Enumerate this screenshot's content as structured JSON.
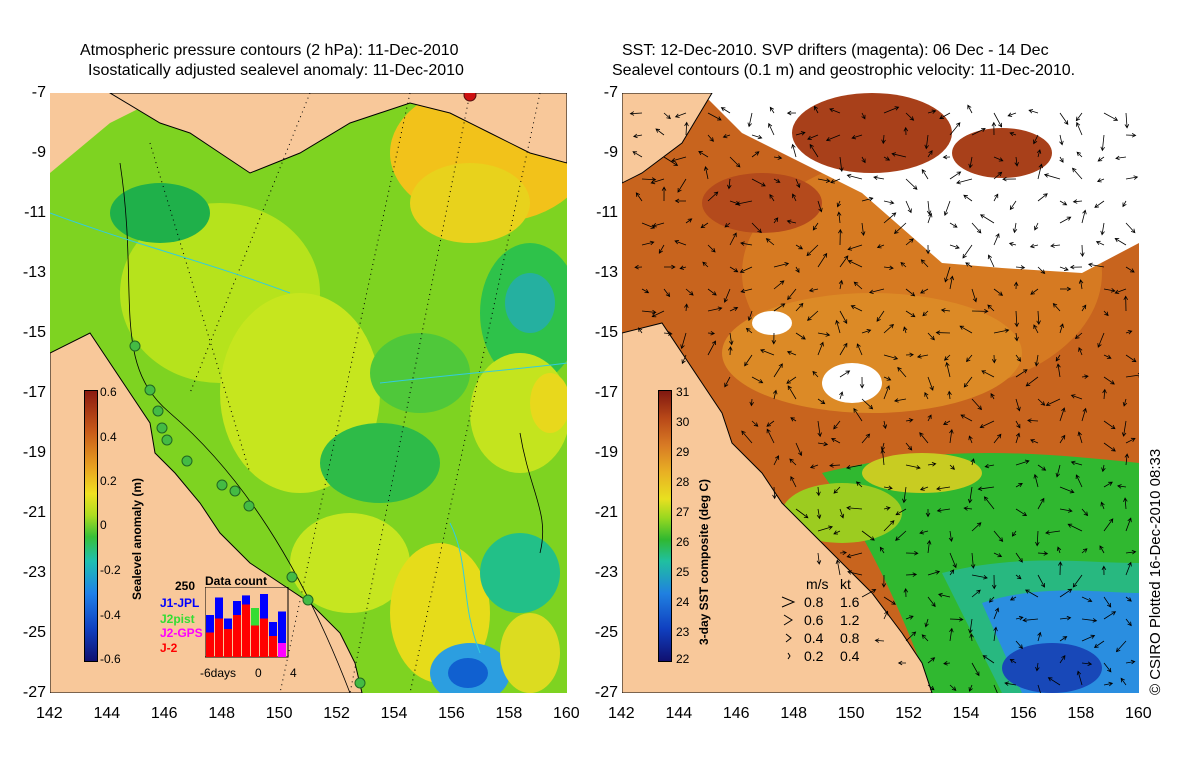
{
  "left_panel": {
    "title_line1": "Atmospheric pressure contours (2 hPa): 11-Dec-2010",
    "title_line2": "Isostatically adjusted sealevel anomaly: 11-Dec-2010",
    "colorbar": {
      "label": "Sealevel anomaly (m)",
      "ticks": [
        "0.6",
        "0.4",
        "0.2",
        "0",
        "-0.2",
        "-0.4",
        "-0.6"
      ]
    },
    "data_count": {
      "title": "Data count",
      "max_label": "250",
      "series": [
        {
          "name": "J1-JPL",
          "color": "#0000ff"
        },
        {
          "name": "J2pist",
          "color": "#33dd33"
        },
        {
          "name": "J2-GPS",
          "color": "#ff00ff"
        },
        {
          "name": "J-2",
          "color": "#ff0000"
        }
      ],
      "xaxis_labels": [
        "-6days",
        "0",
        "4"
      ],
      "bars": [
        {
          "red": 0.35,
          "blue": 0.6
        },
        {
          "red": 0.55,
          "blue": 0.85
        },
        {
          "red": 0.4,
          "blue": 0.55
        },
        {
          "red": 0.6,
          "blue": 0.8
        },
        {
          "red": 0.75,
          "blue": 0.88
        },
        {
          "red": 0.45,
          "blue": 0.55,
          "green": 0.7
        },
        {
          "red": 0.55,
          "blue": 0.9
        },
        {
          "red": 0.3,
          "blue": 0.5
        },
        {
          "red": 0.1,
          "blue": 0.65,
          "magenta": 0.2
        }
      ]
    }
  },
  "right_panel": {
    "title_line1": "SST: 12-Dec-2010. SVP drifters (magenta): 06 Dec - 14 Dec",
    "title_line2": "Sealevel contours (0.1 m) and geostrophic velocity: 11-Dec-2010.",
    "colorbar": {
      "label": "3-day SST composite (deg C)",
      "ticks": [
        "31",
        "30",
        "29",
        "28",
        "27",
        "26",
        "25",
        "24",
        "23",
        "22"
      ]
    },
    "vector_legend": {
      "header_ms": "m/s",
      "header_kt": "kt",
      "rows": [
        {
          "ms": "0.8",
          "kt": "1.6"
        },
        {
          "ms": "0.6",
          "kt": "1.2"
        },
        {
          "ms": "0.4",
          "kt": "0.8"
        },
        {
          "ms": "0.2",
          "kt": "0.4"
        }
      ]
    }
  },
  "axes": {
    "y_ticks": [
      "-7",
      "-9",
      "-11",
      "-13",
      "-15",
      "-17",
      "-19",
      "-21",
      "-23",
      "-25",
      "-27"
    ],
    "x_ticks": [
      "142",
      "144",
      "146",
      "148",
      "150",
      "152",
      "154",
      "156",
      "158",
      "160"
    ]
  },
  "credit": "© CSIRO Plotted 16-Dec-2010 08:33",
  "colors": {
    "land": "#f8c89a",
    "sla_mid": "#7ed321",
    "sst_warm": "#c8641e"
  }
}
